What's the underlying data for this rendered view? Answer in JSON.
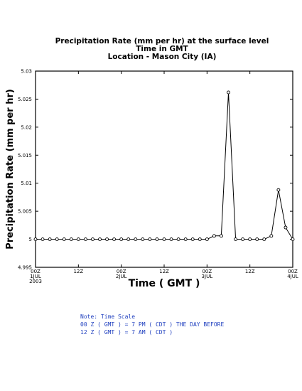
{
  "chart_data": {
    "type": "line",
    "title_lines": [
      "Precipitation Rate (mm per hr) at the surface level",
      "Time in GMT",
      "Location - Mason City (IA)"
    ],
    "xlabel": "Time ( GMT )",
    "ylabel": "Precipitation Rate (mm per hr)",
    "ylim": [
      4.995,
      5.03
    ],
    "y_ticks": [
      "4.995",
      "5",
      "5.005",
      "5.01",
      "5.015",
      "5.02",
      "5.025",
      "5.03"
    ],
    "x_range_hours": [
      0,
      72
    ],
    "x_ticks": [
      {
        "hour": 0,
        "line1": "00Z",
        "line2": "1JUL",
        "line3": "2003"
      },
      {
        "hour": 12,
        "line1": "12Z",
        "line2": "",
        "line3": ""
      },
      {
        "hour": 24,
        "line1": "00Z",
        "line2": "2JUL",
        "line3": ""
      },
      {
        "hour": 36,
        "line1": "12Z",
        "line2": "",
        "line3": ""
      },
      {
        "hour": 48,
        "line1": "00Z",
        "line2": "3JUL",
        "line3": ""
      },
      {
        "hour": 60,
        "line1": "12Z",
        "line2": "",
        "line3": ""
      },
      {
        "hour": 72,
        "line1": "00Z",
        "line2": "4JUL",
        "line3": ""
      }
    ],
    "series": [
      {
        "x": [
          0,
          2,
          4,
          6,
          8,
          10,
          12,
          14,
          16,
          18,
          20,
          22,
          24,
          26,
          28,
          30,
          32,
          34,
          36,
          38,
          40,
          42,
          44,
          46,
          48,
          50,
          52,
          54,
          56,
          58,
          60,
          62,
          64,
          66,
          68,
          70,
          72
        ],
        "y": [
          5,
          5,
          5,
          5,
          5,
          5,
          5,
          5,
          5,
          5,
          5,
          5,
          5,
          5,
          5,
          5,
          5,
          5,
          5,
          5,
          5,
          5,
          5,
          5,
          5,
          5.0006,
          5.0006,
          5.0262,
          5,
          5,
          5,
          5,
          5,
          5.0006,
          5.0088,
          5.0021,
          5
        ]
      }
    ],
    "grid": false,
    "legend": "none"
  },
  "note": {
    "lines": [
      "Note: Time Scale",
      "00 Z ( GMT ) = 7 PM ( CDT ) THE DAY BEFORE",
      "12 Z ( GMT ) = 7 AM ( CDT )"
    ]
  }
}
